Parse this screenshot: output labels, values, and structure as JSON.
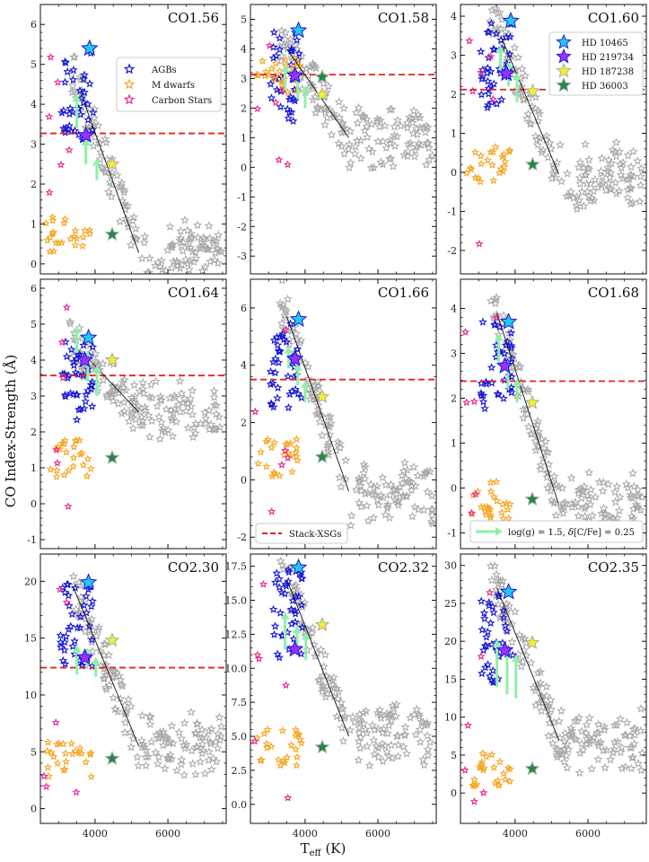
{
  "figure": {
    "ylabel": "CO Index-Strength (Å)",
    "xlabel_main": "T",
    "xlabel_sub": "eff",
    "xlabel_unit": " (K)"
  },
  "colors": {
    "agb": "#1515d4",
    "mdwarf": "#f5a623",
    "carbon": "#e8268f",
    "model": "#a8a8a8",
    "hd10465": "#22c8f0",
    "hd219734": "#9b30ff",
    "hd187238": "#f3ef2c",
    "hd36003": "#1f8a43",
    "xsg_line": "#e32222",
    "arrow": "#8ff0a8",
    "fitline": "#111111"
  },
  "legends": {
    "samples": [
      "AGBs",
      "M dwarfs",
      "Carbon Stars"
    ],
    "stars": [
      "HD 10465",
      "HD 219734",
      "HD 187238",
      "HD 36003"
    ],
    "xsg": "Stack-XSGs",
    "arrow_prefix": "log(g) = 1.5, ",
    "arrow_delta": "δ",
    "arrow_suffix": "[C/Fe] = 0.25"
  },
  "chart_data": [
    {
      "type": "scatter",
      "title": "CO1.56",
      "xlim": [
        2500,
        7600
      ],
      "xticks": [
        4000,
        6000
      ],
      "ylim": [
        -0.25,
        6.5
      ],
      "yticks": [
        0,
        1,
        2,
        3,
        4,
        5,
        6
      ],
      "xsg": 3.27,
      "series": {
        "HD 10465": [
          3850,
          5.4
        ],
        "HD 219734": [
          3750,
          3.22
        ],
        "HD 187238": [
          4470,
          2.5
        ],
        "HD 36003": [
          4470,
          0.74
        ]
      },
      "fit": [
        [
          3700,
          4.05
        ],
        [
          5200,
          0.28
        ]
      ],
      "arrows": [
        [
          3500,
          3.4,
          4.2
        ],
        [
          3750,
          2.5,
          3.1
        ],
        [
          4050,
          2.1,
          2.6
        ]
      ]
    },
    {
      "type": "scatter",
      "title": "CO1.58",
      "xlim": [
        2500,
        7600
      ],
      "xticks": [
        4000,
        6000
      ],
      "ylim": [
        -3.6,
        5.5
      ],
      "yticks": [
        -3,
        -2,
        -1,
        0,
        1,
        2,
        3,
        4,
        5
      ],
      "xsg": 3.13,
      "series": {
        "HD 10465": [
          3820,
          4.62
        ],
        "HD 219734": [
          3720,
          3.1
        ],
        "HD 187238": [
          4470,
          2.45
        ],
        "HD 36003": [
          4470,
          3.05
        ]
      },
      "fit": [
        [
          3500,
          4.0
        ],
        [
          5200,
          1.0
        ]
      ],
      "arrows": [
        [
          3450,
          2.6,
          3.4
        ],
        [
          3800,
          2.3,
          3.2
        ],
        [
          4000,
          2.0,
          2.7
        ]
      ]
    },
    {
      "type": "scatter",
      "title": "CO1.60",
      "xlim": [
        2500,
        7600
      ],
      "xticks": [
        4000,
        6000
      ],
      "ylim": [
        -2.6,
        4.3
      ],
      "yticks": [
        -2,
        -1,
        0,
        1,
        2,
        3,
        4
      ],
      "xsg": 2.12,
      "series": {
        "HD 10465": [
          3880,
          3.88
        ],
        "HD 219734": [
          3760,
          2.53
        ],
        "HD 187238": [
          4480,
          2.08
        ],
        "HD 36003": [
          4480,
          0.2
        ]
      },
      "fit": [
        [
          3600,
          3.5
        ],
        [
          5200,
          -0.05
        ]
      ],
      "arrows": [
        [
          3600,
          2.5,
          3.2
        ],
        [
          3820,
          2.2,
          2.8
        ],
        [
          4050,
          1.8,
          2.5
        ]
      ]
    },
    {
      "type": "scatter",
      "title": "CO1.64",
      "xlim": [
        2500,
        7600
      ],
      "xticks": [
        4000,
        6000
      ],
      "ylim": [
        -1.25,
        6.25
      ],
      "yticks": [
        -1,
        0,
        1,
        2,
        3,
        4,
        5,
        6
      ],
      "xsg": 3.57,
      "series": {
        "HD 10465": [
          3820,
          4.62
        ],
        "HD 219734": [
          3720,
          4.0
        ],
        "HD 187238": [
          4470,
          4.0
        ],
        "HD 36003": [
          4470,
          1.28
        ]
      },
      "fit": [
        [
          3800,
          4.05
        ],
        [
          5200,
          2.55
        ]
      ],
      "arrows": [
        [
          3500,
          4.2,
          4.9
        ],
        [
          3800,
          3.4,
          4.2
        ],
        [
          4050,
          3.0,
          3.8
        ]
      ]
    },
    {
      "type": "scatter",
      "title": "CO1.66",
      "xlim": [
        2500,
        7600
      ],
      "xticks": [
        4000,
        6000
      ],
      "ylim": [
        -2.4,
        7.0
      ],
      "yticks": [
        -2,
        0,
        2,
        4,
        6
      ],
      "xsg": 3.5,
      "series": {
        "HD 10465": [
          3820,
          5.6
        ],
        "HD 219734": [
          3720,
          4.22
        ],
        "HD 187238": [
          4470,
          2.9
        ],
        "HD 36003": [
          4470,
          0.8
        ]
      },
      "fit": [
        [
          3500,
          5.7
        ],
        [
          5200,
          -0.4
        ]
      ],
      "arrows": [
        [
          3550,
          3.9,
          4.6
        ],
        [
          3800,
          3.3,
          4.0
        ],
        [
          4000,
          2.7,
          3.4
        ]
      ]
    },
    {
      "type": "scatter",
      "title": "CO1.68",
      "xlim": [
        2500,
        7600
      ],
      "xticks": [
        4000,
        6000
      ],
      "ylim": [
        -1.35,
        4.65
      ],
      "yticks": [
        -1,
        0,
        1,
        2,
        3,
        4
      ],
      "xsg": 2.38,
      "series": {
        "HD 10465": [
          3820,
          3.7
        ],
        "HD 219734": [
          3720,
          2.72
        ],
        "HD 187238": [
          4470,
          1.9
        ],
        "HD 36003": [
          4470,
          -0.25
        ]
      },
      "fit": [
        [
          3500,
          3.9
        ],
        [
          5200,
          -0.38
        ]
      ],
      "arrows": [
        [
          3550,
          2.8,
          3.4
        ],
        [
          3800,
          2.2,
          2.8
        ],
        [
          4050,
          1.9,
          2.4
        ]
      ]
    },
    {
      "type": "scatter",
      "title": "CO2.30",
      "xlim": [
        2500,
        7600
      ],
      "xticks": [
        4000,
        6000
      ],
      "ylim": [
        -1.3,
        22.4
      ],
      "yticks": [
        0,
        5,
        10,
        15,
        20
      ],
      "xsg": 12.4,
      "series": {
        "HD 10465": [
          3820,
          19.9
        ],
        "HD 219734": [
          3720,
          13.3
        ],
        "HD 187238": [
          4470,
          14.8
        ],
        "HD 36003": [
          4470,
          4.4
        ]
      },
      "fit": [
        [
          3400,
          19.5
        ],
        [
          5200,
          5.5
        ]
      ],
      "arrows": [
        [
          3500,
          11.8,
          14.2
        ],
        [
          3780,
          12.3,
          14.0
        ],
        [
          4020,
          11.6,
          13.2
        ]
      ]
    },
    {
      "type": "scatter",
      "title": "CO2.32",
      "xlim": [
        2500,
        7600
      ],
      "xticks": [
        4000,
        6000
      ],
      "ylim": [
        -1.4,
        18.4
      ],
      "yticks": [
        0.0,
        2.5,
        5.0,
        7.5,
        10.0,
        12.5,
        15.0,
        17.5
      ],
      "xsg": null,
      "series": {
        "HD 10465": [
          3820,
          17.4
        ],
        "HD 219734": [
          3720,
          11.4
        ],
        "HD 187238": [
          4470,
          13.2
        ],
        "HD 36003": [
          4470,
          4.2
        ]
      },
      "fit": [
        [
          3500,
          16.5
        ],
        [
          5200,
          5.0
        ]
      ],
      "arrows": [
        [
          3450,
          11.4,
          14.0
        ],
        [
          3780,
          11.0,
          13.0
        ],
        [
          4020,
          10.6,
          12.5
        ]
      ]
    },
    {
      "type": "scatter",
      "title": "CO2.35",
      "xlim": [
        2500,
        7600
      ],
      "xticks": [
        4000,
        6000
      ],
      "ylim": [
        -4.0,
        31.5
      ],
      "yticks": [
        0,
        5,
        10,
        15,
        20,
        25,
        30
      ],
      "xsg": null,
      "series": {
        "HD 10465": [
          3820,
          26.5
        ],
        "HD 219734": [
          3720,
          18.8
        ],
        "HD 187238": [
          4470,
          19.8
        ],
        "HD 36003": [
          4470,
          3.2
        ]
      },
      "fit": [
        [
          3500,
          27.0
        ],
        [
          5200,
          7.0
        ]
      ],
      "arrows": [
        [
          3500,
          14.0,
          20.0
        ],
        [
          3780,
          13.0,
          19.0
        ],
        [
          4020,
          12.5,
          18.0
        ]
      ]
    }
  ]
}
